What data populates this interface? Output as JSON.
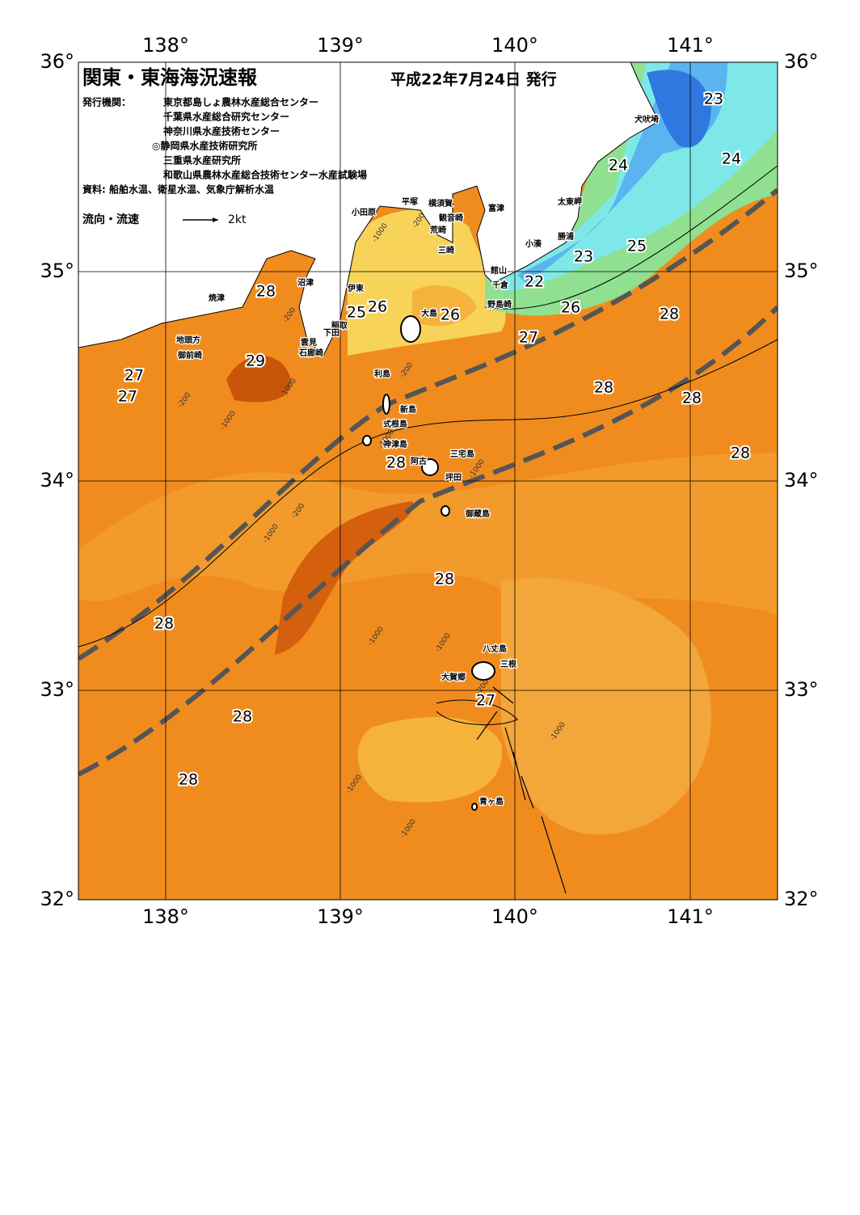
{
  "header": {
    "title": "関東・東海海況速報",
    "date": "平成22年7月24日 発行",
    "agency_label": "発行機関：",
    "agencies": [
      "東京都島しょ農林水産総合センター",
      "千葉県水産総合研究センター",
      "神奈川県水産技術センター",
      "◎静岡県水産技術研究所",
      "三重県水産研究所",
      "和歌山県農林水産総合技術センター水産試験場"
    ],
    "source": "資料: 船舶水温、衛星水温、気象庁解析水温"
  },
  "legend": {
    "label": "流向・流速",
    "scale": "2kt"
  },
  "axes": {
    "longitudes": [
      "138°",
      "139°",
      "140°",
      "141°"
    ],
    "latitudes": [
      "36°",
      "35°",
      "34°",
      "33°",
      "32°"
    ]
  },
  "places": [
    "犬吠埼",
    "太東岬",
    "勝浦",
    "小湊",
    "館山",
    "千倉",
    "野島崎",
    "富津",
    "横須賀",
    "観音崎",
    "平塚",
    "小田原",
    "荒崎",
    "三崎",
    "沼津",
    "焼津",
    "伊東",
    "稲取",
    "下田",
    "雲見",
    "石廊崎",
    "地頭方",
    "御前崎",
    "大島",
    "利島",
    "新島",
    "式根島",
    "神津島",
    "三宅島",
    "阿古",
    "坪田",
    "御蔵島",
    "八丈島",
    "三根",
    "大賀郷",
    "青ヶ島"
  ],
  "temperatures": [
    23,
    24,
    24,
    23,
    25,
    22,
    26,
    28,
    25,
    26,
    26,
    27,
    28,
    29,
    27,
    27,
    28,
    28,
    28,
    28,
    28,
    28,
    27,
    28,
    28
  ],
  "depth_labels": [
    -200,
    -1000,
    -200,
    -1000,
    -200,
    -1000,
    -1000,
    -200,
    -1000,
    -1000,
    -1000,
    -1000,
    -1000,
    -200,
    -1000,
    -1000,
    -200
  ]
}
